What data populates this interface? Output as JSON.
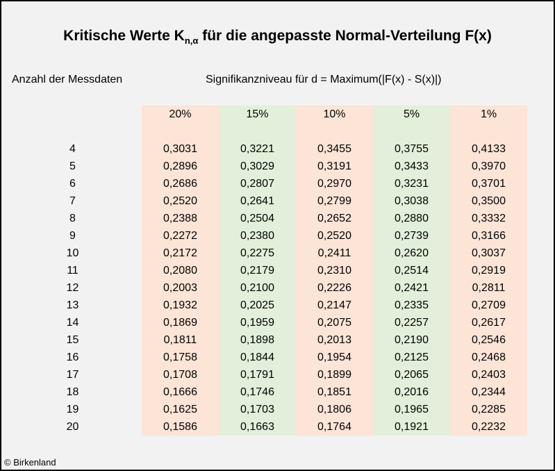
{
  "title": {
    "main": "Kritische Werte K",
    "subscript": "n,α",
    "rest": " für die angepasste Normal-Verteilung F(x)"
  },
  "labels": {
    "count": "Anzahl der Messdaten",
    "significance": "Signifikanzniveau für d = Maximum(|F(x) - S(x)|)"
  },
  "columns": [
    {
      "header": "20%",
      "color": "#fce4d6",
      "values": [
        "0,3031",
        "0,2896",
        "0,2686",
        "0,2520",
        "0,2388",
        "0,2272",
        "0,2172",
        "0,2080",
        "0,2003",
        "0,1932",
        "0,1869",
        "0,1811",
        "0,1758",
        "0,1708",
        "0,1666",
        "0,1625",
        "0,1586"
      ]
    },
    {
      "header": "15%",
      "color": "#e2efda",
      "values": [
        "0,3221",
        "0,3029",
        "0,2807",
        "0,2641",
        "0,2504",
        "0,2380",
        "0,2275",
        "0,2179",
        "0,2100",
        "0,2025",
        "0,1959",
        "0,1898",
        "0,1844",
        "0,1791",
        "0,1746",
        "0,1703",
        "0,1663"
      ]
    },
    {
      "header": "10%",
      "color": "#fce4d6",
      "values": [
        "0,3455",
        "0,3191",
        "0,2970",
        "0,2799",
        "0,2652",
        "0,2520",
        "0,2411",
        "0,2310",
        "0,2226",
        "0,2147",
        "0,2075",
        "0,2013",
        "0,1954",
        "0,1899",
        "0,1851",
        "0,1806",
        "0,1764"
      ]
    },
    {
      "header": "5%",
      "color": "#e2efda",
      "values": [
        "0,3755",
        "0,3433",
        "0,3231",
        "0,3038",
        "0,2880",
        "0,2739",
        "0,2620",
        "0,2514",
        "0,2421",
        "0,2335",
        "0,2257",
        "0,2190",
        "0,2125",
        "0,2065",
        "0,2016",
        "0,1965",
        "0,1921"
      ]
    },
    {
      "header": "1%",
      "color": "#fce4d6",
      "values": [
        "0,4133",
        "0,3970",
        "0,3701",
        "0,3500",
        "0,3332",
        "0,3166",
        "0,3037",
        "0,2919",
        "0,2811",
        "0,2709",
        "0,2617",
        "0,2546",
        "0,2468",
        "0,2403",
        "0,2344",
        "0,2285",
        "0,2232"
      ]
    }
  ],
  "n_values": [
    "4",
    "5",
    "6",
    "7",
    "8",
    "9",
    "10",
    "11",
    "12",
    "13",
    "14",
    "15",
    "16",
    "17",
    "18",
    "19",
    "20"
  ],
  "copyright": "© Birkenland"
}
